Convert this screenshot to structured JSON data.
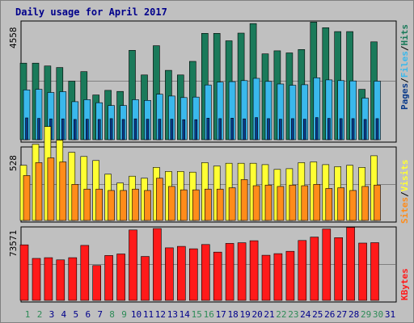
{
  "title": "Daily usage for April 2017",
  "colors": {
    "title": "#00008b",
    "hits_bar": "#1a7a5a",
    "files_bar": "#3ab8ec",
    "pages_bar": "#0a3a8a",
    "visits_bar": "#ffff33",
    "sites_bar": "#ff8c1a",
    "kbytes_bar": "#ff1a1a",
    "weekend_day": "#2e8b57",
    "weekday_day": "#00008b"
  },
  "chart_data": [
    {
      "type": "bar",
      "title": "Daily usage for April 2017",
      "ytick": "4558",
      "ymax": 4558,
      "legend_labels": [
        "Pages",
        "Files",
        "Hits"
      ],
      "categories": [
        "1",
        "2",
        "3",
        "4",
        "5",
        "6",
        "7",
        "8",
        "9",
        "10",
        "11",
        "12",
        "13",
        "14",
        "15",
        "16",
        "17",
        "18",
        "19",
        "20",
        "21",
        "22",
        "23",
        "24",
        "25",
        "26",
        "27",
        "28",
        "29",
        "30",
        "31"
      ],
      "series": [
        {
          "name": "Hits",
          "values": [
            2980,
            2980,
            2870,
            2810,
            2280,
            2650,
            1740,
            1920,
            1880,
            3480,
            2520,
            3660,
            2700,
            2520,
            3050,
            4140,
            4140,
            3850,
            4150,
            4520,
            3340,
            3460,
            3380,
            3510,
            4580,
            4360,
            4210,
            4210,
            1960,
            3810,
            0
          ]
        },
        {
          "name": "Files",
          "values": [
            1940,
            1960,
            1840,
            1870,
            1480,
            1560,
            1440,
            1330,
            1330,
            1560,
            1530,
            1770,
            1700,
            1640,
            1660,
            2130,
            2240,
            2260,
            2300,
            2390,
            2270,
            2170,
            2120,
            2140,
            2410,
            2330,
            2300,
            2290,
            1620,
            2280,
            0
          ]
        },
        {
          "name": "Pages",
          "values": [
            850,
            830,
            810,
            810,
            790,
            800,
            790,
            820,
            790,
            810,
            800,
            800,
            800,
            780,
            780,
            840,
            820,
            840,
            810,
            860,
            820,
            800,
            820,
            800,
            860,
            830,
            820,
            820,
            790,
            820,
            0
          ]
        }
      ]
    },
    {
      "type": "bar",
      "ytick": "528",
      "ymax": 528,
      "legend_labels": [
        "Sites",
        "Visits"
      ],
      "categories": [
        "1",
        "2",
        "3",
        "4",
        "5",
        "6",
        "7",
        "8",
        "9",
        "10",
        "11",
        "12",
        "13",
        "14",
        "15",
        "16",
        "17",
        "18",
        "19",
        "20",
        "21",
        "22",
        "23",
        "24",
        "25",
        "26",
        "27",
        "28",
        "29",
        "30",
        "31"
      ],
      "series": [
        {
          "name": "Visits",
          "values": [
            405,
            560,
            690,
            590,
            500,
            470,
            440,
            340,
            275,
            325,
            310,
            390,
            360,
            360,
            355,
            425,
            400,
            420,
            420,
            420,
            410,
            375,
            380,
            425,
            430,
            410,
            395,
            405,
            390,
            475,
            0
          ]
        },
        {
          "name": "Sites",
          "values": [
            330,
            425,
            460,
            430,
            265,
            230,
            230,
            220,
            220,
            230,
            220,
            310,
            250,
            225,
            225,
            230,
            230,
            240,
            300,
            255,
            260,
            250,
            260,
            255,
            265,
            235,
            240,
            220,
            250,
            260,
            0
          ]
        }
      ]
    },
    {
      "type": "bar",
      "ytick": "73571",
      "ymax": 73571,
      "legend_labels": [
        "KBytes"
      ],
      "categories": [
        "1",
        "2",
        "3",
        "4",
        "5",
        "6",
        "7",
        "8",
        "9",
        "10",
        "11",
        "12",
        "13",
        "14",
        "15",
        "16",
        "17",
        "18",
        "19",
        "20",
        "21",
        "22",
        "23",
        "24",
        "25",
        "26",
        "27",
        "28",
        "29",
        "30",
        "31"
      ],
      "series": [
        {
          "name": "KBytes",
          "values": [
            56900,
            43000,
            43700,
            41500,
            43700,
            56300,
            35700,
            46000,
            47500,
            72100,
            45000,
            73600,
            53800,
            55300,
            52800,
            57200,
            49400,
            58400,
            59000,
            61100,
            46200,
            47900,
            50300,
            61300,
            64800,
            73100,
            64200,
            74800,
            58700,
            59100,
            0
          ]
        }
      ]
    }
  ],
  "days": [
    {
      "label": "1",
      "weekend": true
    },
    {
      "label": "2",
      "weekend": true
    },
    {
      "label": "3",
      "weekend": false
    },
    {
      "label": "4",
      "weekend": false
    },
    {
      "label": "5",
      "weekend": false
    },
    {
      "label": "6",
      "weekend": false
    },
    {
      "label": "7",
      "weekend": false
    },
    {
      "label": "8",
      "weekend": true
    },
    {
      "label": "9",
      "weekend": true
    },
    {
      "label": "10",
      "weekend": false
    },
    {
      "label": "11",
      "weekend": false
    },
    {
      "label": "12",
      "weekend": false
    },
    {
      "label": "13",
      "weekend": false
    },
    {
      "label": "14",
      "weekend": false
    },
    {
      "label": "15",
      "weekend": true
    },
    {
      "label": "16",
      "weekend": true
    },
    {
      "label": "17",
      "weekend": false
    },
    {
      "label": "18",
      "weekend": false
    },
    {
      "label": "19",
      "weekend": false
    },
    {
      "label": "20",
      "weekend": false
    },
    {
      "label": "21",
      "weekend": false
    },
    {
      "label": "22",
      "weekend": true
    },
    {
      "label": "23",
      "weekend": true
    },
    {
      "label": "24",
      "weekend": false
    },
    {
      "label": "25",
      "weekend": false
    },
    {
      "label": "26",
      "weekend": false
    },
    {
      "label": "27",
      "weekend": false
    },
    {
      "label": "28",
      "weekend": false
    },
    {
      "label": "29",
      "weekend": true
    },
    {
      "label": "30",
      "weekend": true
    },
    {
      "label": "31",
      "weekend": false
    }
  ]
}
